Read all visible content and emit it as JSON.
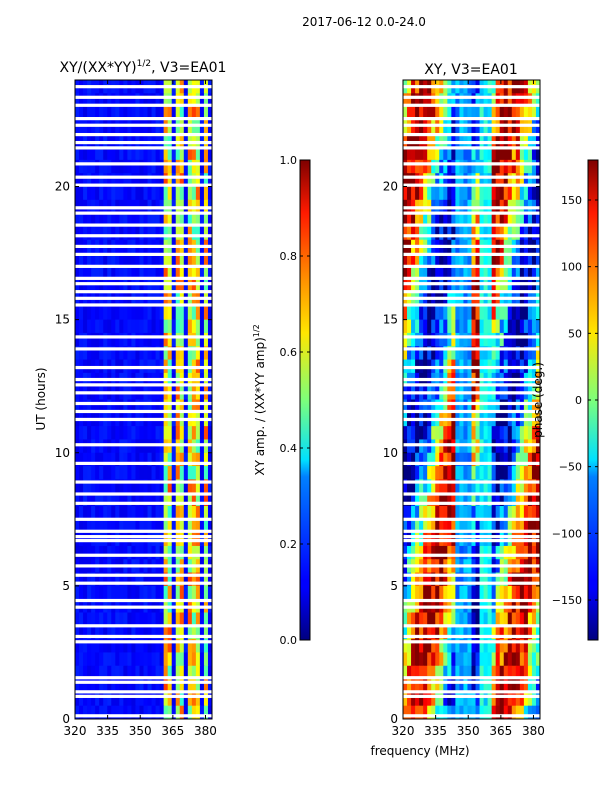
{
  "suptitle": "2017-06-12 0.0-24.0",
  "xlabel_shared": "frequency (MHz)",
  "chart_data": [
    {
      "type": "heatmap",
      "title_main": "XY/(XX*YY)",
      "title_sup": "1/2",
      "title_tail": ", V3=EA01",
      "ylabel": "UT (hours)",
      "xlim": [
        320,
        383
      ],
      "ylim": [
        0,
        24
      ],
      "xticks": [
        "320",
        "335",
        "350",
        "365",
        "380"
      ],
      "xtick_values": [
        320,
        335,
        350,
        365,
        380
      ],
      "yticks": [
        "0",
        "5",
        "10",
        "15",
        "20"
      ],
      "ytick_values": [
        0,
        5,
        10,
        15,
        20
      ],
      "colormap": "jet",
      "colorbar": {
        "label_main": "XY amp. / (XX*YY amp)",
        "label_sup": "1/2",
        "range": [
          0.0,
          1.0
        ],
        "ticks": [
          "0.0",
          "0.2",
          "0.4",
          "0.6",
          "0.8",
          "1.0"
        ],
        "tick_values": [
          0.0,
          0.2,
          0.4,
          0.6,
          0.8,
          1.0
        ]
      },
      "bright_bands_mhz": [
        [
          361,
          364
        ],
        [
          366,
          370
        ],
        [
          372,
          377
        ],
        [
          379,
          381
        ]
      ]
    },
    {
      "type": "heatmap",
      "title": "XY, V3=EA01",
      "xlim": [
        320,
        383
      ],
      "ylim": [
        0,
        24
      ],
      "xticks": [
        "320",
        "335",
        "350",
        "365",
        "380"
      ],
      "xtick_values": [
        320,
        335,
        350,
        365,
        380
      ],
      "yticks": [
        "0",
        "5",
        "10",
        "15",
        "20"
      ],
      "ytick_values": [
        0,
        5,
        10,
        15,
        20
      ],
      "colormap": "jet",
      "colorbar": {
        "label": "phase (deg.)",
        "range": [
          -180,
          180
        ],
        "ticks": [
          "−150",
          "−100",
          "−50",
          "0",
          "50",
          "100",
          "150"
        ],
        "tick_values": [
          -150,
          -100,
          -50,
          0,
          50,
          100,
          150
        ]
      }
    }
  ],
  "data_gaps_ut_hours": [
    0.12,
    0.85,
    1.02,
    1.38,
    1.55,
    2.9,
    3.1,
    3.5,
    4.2,
    4.45,
    5.1,
    5.4,
    5.75,
    6.15,
    6.7,
    6.85,
    7.05,
    7.5,
    8.1,
    8.45,
    8.9,
    9.6,
    10.3,
    11.25,
    11.55,
    11.85,
    12.25,
    12.55,
    12.75,
    13.2,
    13.9,
    14.35,
    15.55,
    15.8,
    16.05,
    16.35,
    16.55,
    17.0,
    17.45,
    17.75,
    18.15,
    18.55,
    19.0,
    19.2,
    20.05,
    20.35,
    20.85,
    21.45,
    21.65,
    21.95,
    22.3,
    22.55,
    23.05,
    23.35,
    23.75
  ]
}
